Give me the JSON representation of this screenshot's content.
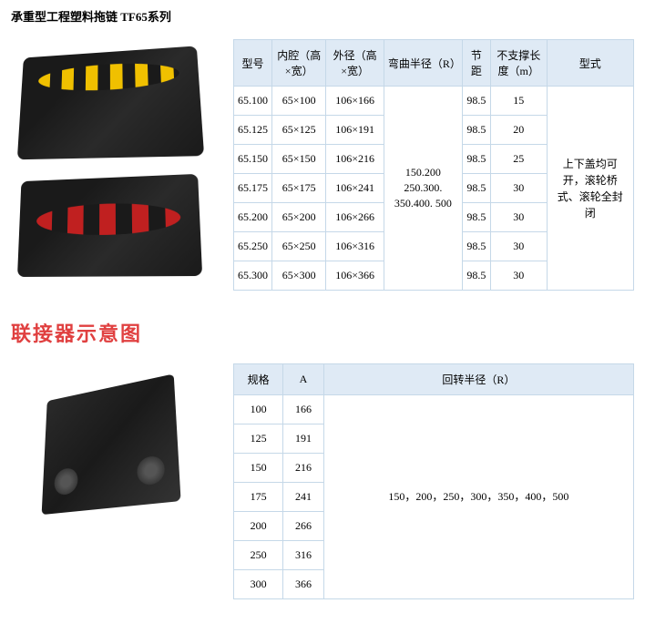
{
  "page_title": "承重型工程塑料拖链 TF65系列",
  "table1": {
    "headers": [
      "型号",
      "内腔（高×宽）",
      "外径（高×宽）",
      "弯曲半径（R）",
      "节距",
      "不支撑长度（m）",
      "型式"
    ],
    "rows": [
      [
        "65.100",
        "65×100",
        "106×166",
        "",
        "98.5",
        "15"
      ],
      [
        "65.125",
        "65×125",
        "106×191",
        "",
        "98.5",
        "20"
      ],
      [
        "65.150",
        "65×150",
        "106×216",
        "",
        "98.5",
        "25"
      ],
      [
        "65.175",
        "65×175",
        "106×241",
        "",
        "98.5",
        "30"
      ],
      [
        "65.200",
        "65×200",
        "106×266",
        "",
        "98.5",
        "30"
      ],
      [
        "65.250",
        "65×250",
        "106×316",
        "",
        "98.5",
        "30"
      ],
      [
        "65.300",
        "65×300",
        "106×366",
        "",
        "98.5",
        "30"
      ]
    ],
    "bend_radius_merged": "150.200 250.300. 350.400. 500",
    "type_merged": "上下盖均可开，滚轮桥式、滚轮全封闭"
  },
  "section2_heading": "联接器示意图",
  "table2": {
    "headers": [
      "规格",
      "A",
      "回转半径（R）"
    ],
    "rows": [
      [
        "100",
        "166"
      ],
      [
        "125",
        "191"
      ],
      [
        "150",
        "216"
      ],
      [
        "175",
        "241"
      ],
      [
        "200",
        "266"
      ],
      [
        "250",
        "316"
      ],
      [
        "300",
        "366"
      ]
    ],
    "radius_merged": "150，200，250，300，350，400，500"
  },
  "colors": {
    "header_bg": "#dfeaf5",
    "border": "#c5d8e8",
    "heading_red": "#e04040"
  }
}
